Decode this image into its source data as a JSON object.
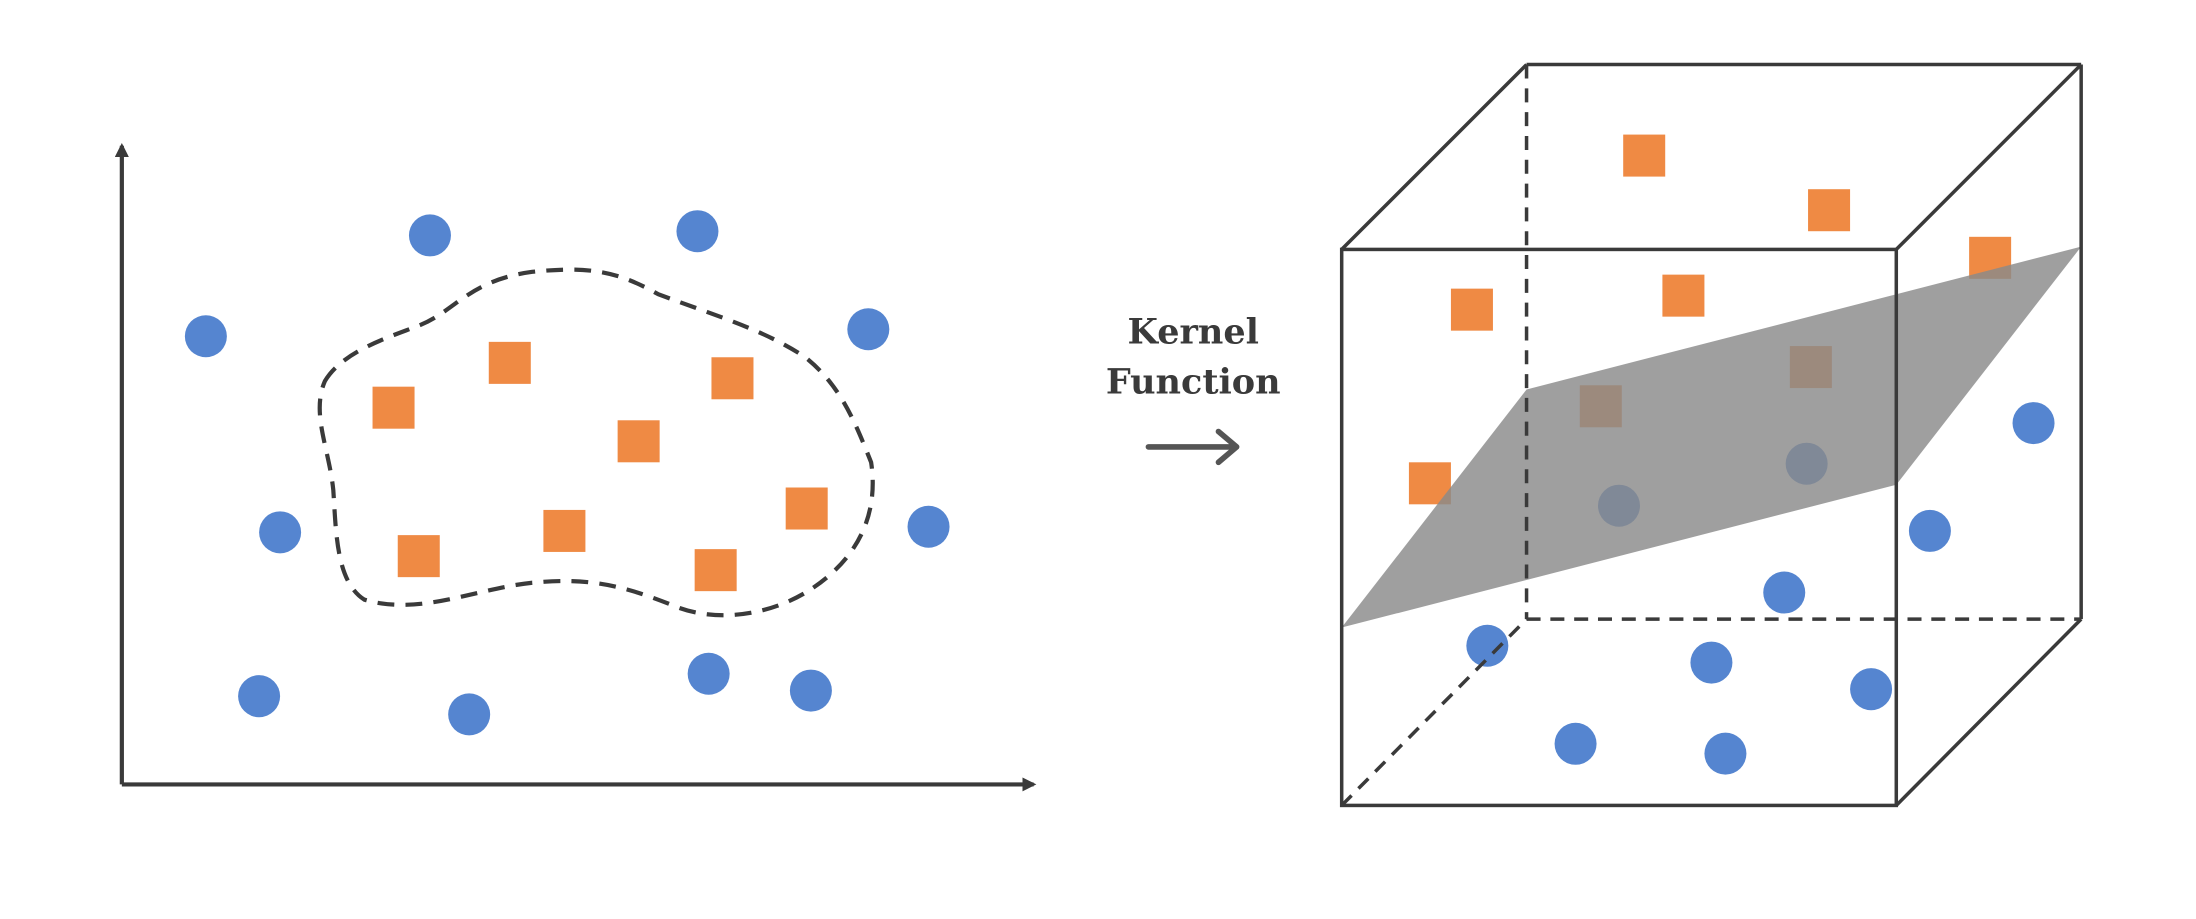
{
  "label": {
    "lines": [
      "Kernel",
      "Function"
    ]
  }
}
